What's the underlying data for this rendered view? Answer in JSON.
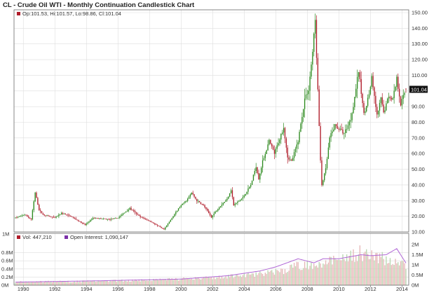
{
  "chart_title": "CL - Crude Oil WTI - Monthly Continuation Candlestick Chart",
  "ohlc_readout": "Op:101.53, Hi:101.57, Lo:98.86, Cl:101.04",
  "last_price_label": "101.04",
  "price_tick_labels": [
    "150.00",
    "140.00",
    "130.00",
    "120.00",
    "110.00",
    "100.00",
    "90.00",
    "80.00",
    "70.00",
    "60.00",
    "50.00",
    "40.00",
    "30.00",
    "20.00",
    "10.00"
  ],
  "volume_tick_labels_left": [
    "1M",
    "0.8M",
    "0.6M",
    "0.4M",
    "0.2M",
    "0M"
  ],
  "volume_tick_labels_right": [
    "2M",
    "1.5M",
    "1M",
    "0.5M",
    "0M"
  ],
  "x_tick_labels": [
    "1990",
    "1992",
    "1994",
    "1996",
    "1998",
    "2000",
    "2002",
    "2004",
    "2006",
    "2008",
    "2010",
    "2012",
    "2014"
  ],
  "legend": {
    "volume": "Vol: 447,210",
    "open_interest": "Open Interest: 1,090,147"
  },
  "colors": {
    "up": "#2d8a1f",
    "down": "#b01c2a",
    "volume_bar": "#e6b8b8",
    "volume_bar_alt": "#b9d7b0",
    "open_interest": "#b066d6",
    "legend_vol": "#b01c2a",
    "legend_oi": "#7b2fa8",
    "grid": "#dedede",
    "last_box": "#111111"
  },
  "chart_data": {
    "type": "candlestick",
    "title": "CL - Crude Oil WTI - Monthly Continuation Candlestick Chart",
    "x_range": [
      "1989-07",
      "2014-04"
    ],
    "price_ylim": [
      10,
      150
    ],
    "volume_ylim": [
      0,
      1000000
    ],
    "open_interest_ylim": [
      0,
      2000000
    ],
    "grid": true,
    "price_anchors": [
      {
        "t": "1989-07",
        "v": 19
      },
      {
        "t": "1990-02",
        "v": 21
      },
      {
        "t": "1990-07",
        "v": 18
      },
      {
        "t": "1990-10",
        "v": 35
      },
      {
        "t": "1991-01",
        "v": 24
      },
      {
        "t": "1991-04",
        "v": 21
      },
      {
        "t": "1992-01",
        "v": 19
      },
      {
        "t": "1992-06",
        "v": 22
      },
      {
        "t": "1993-01",
        "v": 20
      },
      {
        "t": "1993-12",
        "v": 14.5
      },
      {
        "t": "1994-06",
        "v": 19
      },
      {
        "t": "1995-06",
        "v": 18
      },
      {
        "t": "1996-01",
        "v": 19
      },
      {
        "t": "1996-10",
        "v": 25
      },
      {
        "t": "1997-06",
        "v": 19.5
      },
      {
        "t": "1998-01",
        "v": 17
      },
      {
        "t": "1998-12",
        "v": 11.5
      },
      {
        "t": "1999-06",
        "v": 19
      },
      {
        "t": "1999-12",
        "v": 26
      },
      {
        "t": "2000-06",
        "v": 31
      },
      {
        "t": "2000-09",
        "v": 35
      },
      {
        "t": "2001-01",
        "v": 30
      },
      {
        "t": "2001-06",
        "v": 27
      },
      {
        "t": "2001-12",
        "v": 19.5
      },
      {
        "t": "2002-06",
        "v": 26
      },
      {
        "t": "2002-12",
        "v": 31
      },
      {
        "t": "2003-03",
        "v": 37
      },
      {
        "t": "2003-05",
        "v": 27
      },
      {
        "t": "2003-12",
        "v": 32
      },
      {
        "t": "2004-06",
        "v": 40
      },
      {
        "t": "2004-10",
        "v": 52
      },
      {
        "t": "2004-12",
        "v": 44
      },
      {
        "t": "2005-03",
        "v": 55
      },
      {
        "t": "2005-08",
        "v": 68
      },
      {
        "t": "2005-12",
        "v": 60
      },
      {
        "t": "2006-07",
        "v": 77
      },
      {
        "t": "2006-10",
        "v": 58
      },
      {
        "t": "2007-01",
        "v": 55
      },
      {
        "t": "2007-06",
        "v": 68
      },
      {
        "t": "2007-11",
        "v": 95
      },
      {
        "t": "2008-02",
        "v": 101
      },
      {
        "t": "2008-05",
        "v": 125
      },
      {
        "t": "2008-07",
        "v": 145
      },
      {
        "t": "2008-09",
        "v": 100
      },
      {
        "t": "2008-11",
        "v": 55
      },
      {
        "t": "2008-12",
        "v": 40
      },
      {
        "t": "2009-03",
        "v": 50
      },
      {
        "t": "2009-06",
        "v": 70
      },
      {
        "t": "2009-10",
        "v": 78
      },
      {
        "t": "2010-05",
        "v": 73
      },
      {
        "t": "2010-10",
        "v": 82
      },
      {
        "t": "2010-12",
        "v": 91
      },
      {
        "t": "2011-04",
        "v": 113
      },
      {
        "t": "2011-08",
        "v": 85
      },
      {
        "t": "2011-12",
        "v": 98
      },
      {
        "t": "2012-02",
        "v": 108
      },
      {
        "t": "2012-06",
        "v": 84
      },
      {
        "t": "2012-09",
        "v": 95
      },
      {
        "t": "2012-11",
        "v": 86
      },
      {
        "t": "2013-03",
        "v": 97
      },
      {
        "t": "2013-06",
        "v": 95
      },
      {
        "t": "2013-09",
        "v": 108
      },
      {
        "t": "2013-12",
        "v": 92
      },
      {
        "t": "2014-04",
        "v": 101
      }
    ],
    "volume_anchors": [
      {
        "t": "1989-07",
        "v": 80000
      },
      {
        "t": "1995-01",
        "v": 100000
      },
      {
        "t": "2000-01",
        "v": 150000
      },
      {
        "t": "2003-01",
        "v": 210000
      },
      {
        "t": "2005-01",
        "v": 280000
      },
      {
        "t": "2006-06",
        "v": 350000
      },
      {
        "t": "2007-06",
        "v": 480000
      },
      {
        "t": "2008-06",
        "v": 520000
      },
      {
        "t": "2009-06",
        "v": 600000
      },
      {
        "t": "2010-06",
        "v": 620000
      },
      {
        "t": "2011-04",
        "v": 800000
      },
      {
        "t": "2012-01",
        "v": 700000
      },
      {
        "t": "2013-06",
        "v": 620000
      },
      {
        "t": "2014-04",
        "v": 447210
      }
    ],
    "open_interest_anchors": [
      {
        "t": "1989-07",
        "v": 150000
      },
      {
        "t": "1995-01",
        "v": 220000
      },
      {
        "t": "2000-01",
        "v": 300000
      },
      {
        "t": "2003-01",
        "v": 470000
      },
      {
        "t": "2005-01",
        "v": 700000
      },
      {
        "t": "2006-01",
        "v": 900000
      },
      {
        "t": "2007-06",
        "v": 1300000
      },
      {
        "t": "2008-06",
        "v": 1100000
      },
      {
        "t": "2009-01",
        "v": 1300000
      },
      {
        "t": "2010-01",
        "v": 1300000
      },
      {
        "t": "2011-06",
        "v": 1500000
      },
      {
        "t": "2012-01",
        "v": 1450000
      },
      {
        "t": "2013-01",
        "v": 1500000
      },
      {
        "t": "2013-09",
        "v": 1800000
      },
      {
        "t": "2014-04",
        "v": 1090147
      }
    ],
    "last": {
      "open": 101.53,
      "high": 101.57,
      "low": 98.86,
      "close": 101.04,
      "volume": 447210,
      "open_interest": 1090147
    }
  }
}
